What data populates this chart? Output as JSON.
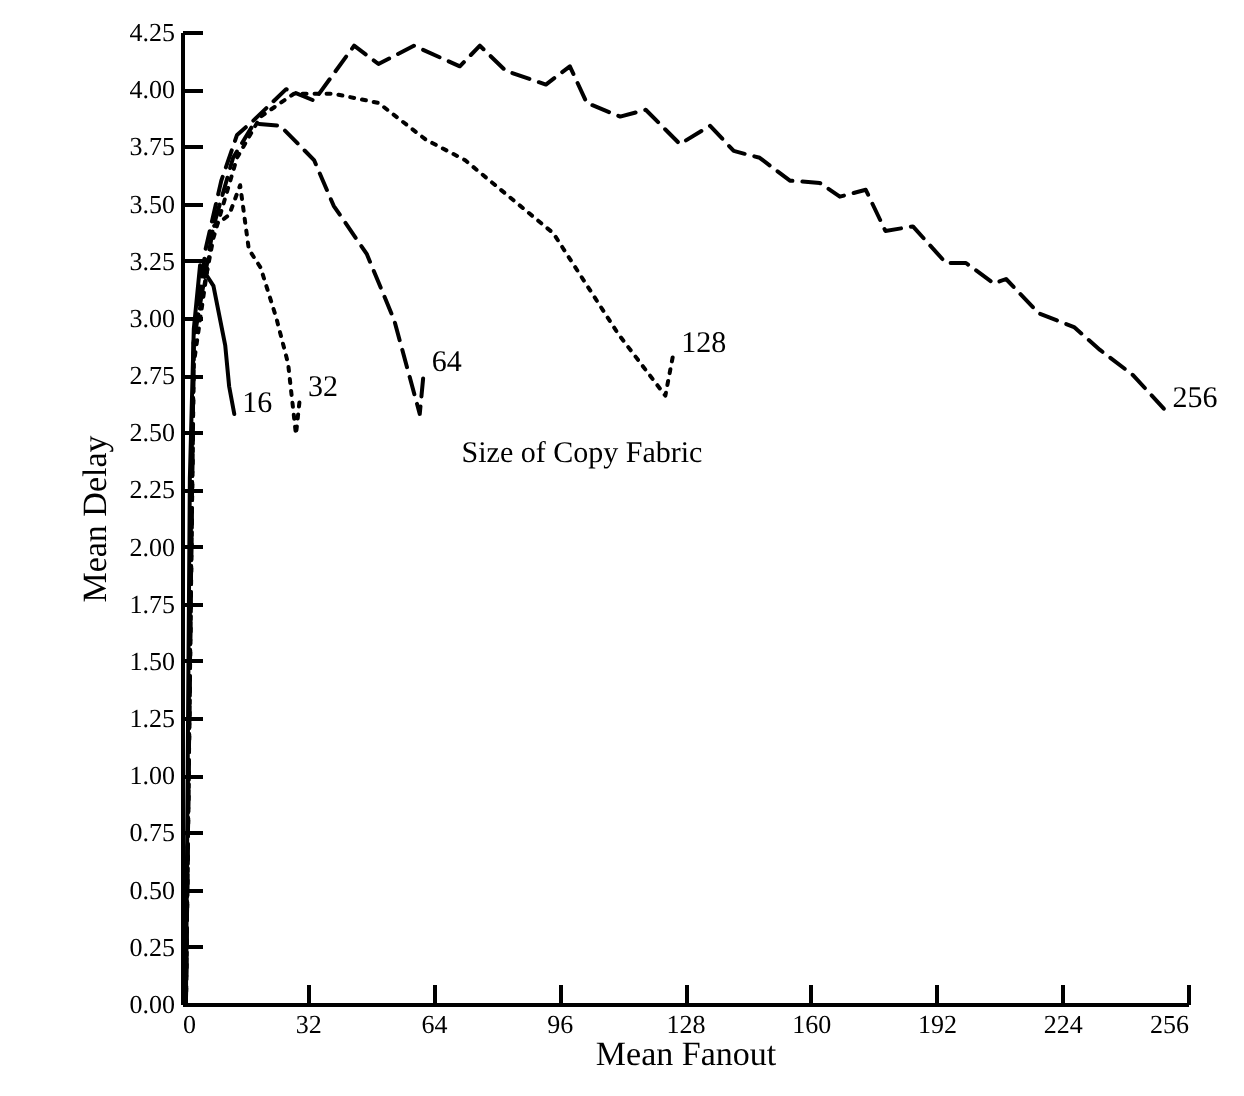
{
  "chart_data": {
    "type": "line",
    "xlabel": "Mean Fanout",
    "ylabel": "Mean Delay",
    "annotations": [
      "Size of Copy Fabric"
    ],
    "xlim": [
      0,
      256
    ],
    "xticks": [
      0,
      32,
      64,
      96,
      128,
      160,
      192,
      224,
      256
    ],
    "ylim": [
      0,
      4.25
    ],
    "yticks": [
      {
        "value": 0,
        "label": "0.00"
      },
      {
        "value": 0.25,
        "label": "0.25"
      },
      {
        "value": 0.5,
        "label": "0.50"
      },
      {
        "value": 0.75,
        "label": "0.75"
      },
      {
        "value": 1,
        "label": "1.00"
      },
      {
        "value": 1.25,
        "label": "1.25"
      },
      {
        "value": 1.5,
        "label": "1.50"
      },
      {
        "value": 1.75,
        "label": "1.75"
      },
      {
        "value": 2,
        "label": "2.00"
      },
      {
        "value": 2.25,
        "label": "2.25"
      },
      {
        "value": 2.5,
        "label": "2.50"
      },
      {
        "value": 2.75,
        "label": "2.75"
      },
      {
        "value": 3,
        "label": "3.00"
      },
      {
        "value": 3.25,
        "label": "3.25"
      },
      {
        "value": 3.5,
        "label": "3.50"
      },
      {
        "value": 3.75,
        "label": "3.75"
      },
      {
        "value": 4,
        "label": "4.00"
      },
      {
        "value": 4.25,
        "label": "4.25"
      }
    ],
    "grid": false,
    "marker": "none",
    "series": [
      {
        "name": "16",
        "color": "#000000",
        "line_style": "solid",
        "x": [
          1,
          2,
          3,
          4.6,
          8,
          11,
          12,
          13.3
        ],
        "values": [
          0,
          2.3,
          2.95,
          3.23,
          3.14,
          2.88,
          2.7,
          2.58
        ]
      },
      {
        "name": "32",
        "color": "#000000",
        "line_style": "dotted",
        "x": [
          1,
          3,
          8,
          12,
          14.8,
          17,
          20,
          24,
          27,
          29,
          30
        ],
        "values": [
          0,
          2.8,
          3.4,
          3.45,
          3.58,
          3.3,
          3.22,
          3.0,
          2.8,
          2.49,
          2.65
        ]
      },
      {
        "name": "64",
        "color": "#000000",
        "line_style": "dashed",
        "x": [
          1,
          3,
          8,
          13,
          18.3,
          25,
          33.6,
          38.6,
          47,
          54,
          60.5,
          61.5
        ],
        "values": [
          0,
          2.9,
          3.4,
          3.7,
          3.85,
          3.84,
          3.69,
          3.49,
          3.28,
          2.99,
          2.58,
          2.76
        ]
      },
      {
        "name": "128",
        "color": "#000000",
        "line_style": "dotted",
        "x": [
          1,
          3,
          8,
          14,
          20,
          28.5,
          38.6,
          50,
          62,
          72,
          94.5,
          111,
          123,
          125
        ],
        "values": [
          0,
          2.9,
          3.35,
          3.7,
          3.88,
          3.98,
          3.98,
          3.94,
          3.78,
          3.69,
          3.37,
          2.93,
          2.66,
          2.84
        ]
      },
      {
        "name": "256",
        "color": "#000000",
        "line_style": "dashed",
        "x": [
          1,
          3,
          6,
          10,
          14,
          18,
          26.5,
          33.6,
          43.8,
          50,
          59,
          70.7,
          75.8,
          82.4,
          92.6,
          98.7,
          103,
          111.5,
          118,
          126.7,
          134.4,
          140.4,
          147,
          154.7,
          162.3,
          167.4,
          174,
          179,
          186,
          194.4,
          199.5,
          206.6,
          209.7,
          218,
          227,
          233.6,
          242,
          250
        ],
        "values": [
          0,
          2.9,
          3.3,
          3.6,
          3.8,
          3.86,
          4.0,
          3.95,
          4.19,
          4.11,
          4.19,
          4.1,
          4.19,
          4.08,
          4.02,
          4.1,
          3.94,
          3.88,
          3.91,
          3.76,
          3.84,
          3.73,
          3.7,
          3.6,
          3.59,
          3.53,
          3.56,
          3.38,
          3.4,
          3.24,
          3.24,
          3.15,
          3.17,
          3.02,
          2.96,
          2.86,
          2.75,
          2.6
        ]
      }
    ]
  }
}
